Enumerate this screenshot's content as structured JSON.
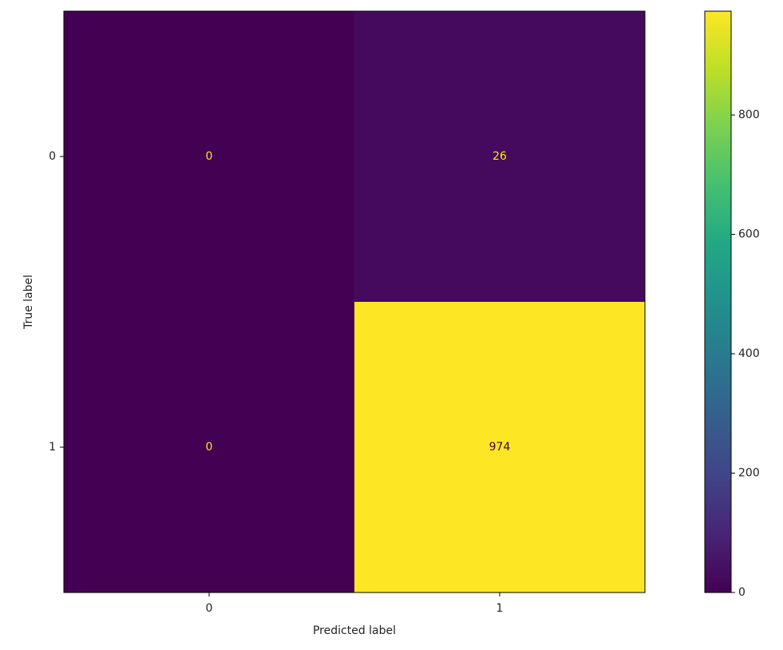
{
  "chart_data": {
    "type": "heatmap",
    "x_categories": [
      "0",
      "1"
    ],
    "y_categories": [
      "0",
      "1"
    ],
    "values": [
      [
        0,
        26
      ],
      [
        0,
        974
      ]
    ],
    "xlabel": "Predicted label",
    "ylabel": "True label",
    "colormap": "viridis",
    "clim": [
      0,
      974
    ],
    "colorbar_ticks": [
      0,
      200,
      400,
      600,
      800
    ]
  }
}
